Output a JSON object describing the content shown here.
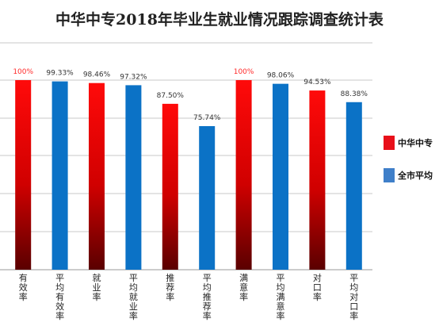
{
  "chart_data": {
    "type": "bar",
    "title": "中华中专2018年毕业生就业情况跟踪调查统计表",
    "categories": [
      "有效率",
      "平均有效率",
      "就业率",
      "平均就业率",
      "推荐率",
      "平均推荐率",
      "满意率",
      "平均满意率",
      "对口率",
      "平均对口率"
    ],
    "values": [
      100,
      99.33,
      98.46,
      97.32,
      87.5,
      75.74,
      100,
      98.06,
      94.53,
      88.38
    ],
    "data_labels": [
      "100%",
      "99.33%",
      "98.46%",
      "97.32%",
      "87.50%",
      "75.74%",
      "100%",
      "98.06%",
      "94.53%",
      "88.38%"
    ],
    "series_of_bar": [
      0,
      1,
      0,
      1,
      0,
      1,
      0,
      1,
      0,
      1
    ],
    "legend": [
      {
        "name": "中华中专",
        "color": "#e8101a"
      },
      {
        "name": "全市平均",
        "color": "#3f7fc9"
      }
    ],
    "ylim": [
      0,
      100
    ],
    "grid": true,
    "legend_position": "right",
    "colors": {
      "red_top": "#ff0a0a",
      "red_bottom": "#5a0000",
      "blue": "#0b72c6",
      "label_red": "#ff2a2a",
      "label_dark": "#333333"
    }
  }
}
